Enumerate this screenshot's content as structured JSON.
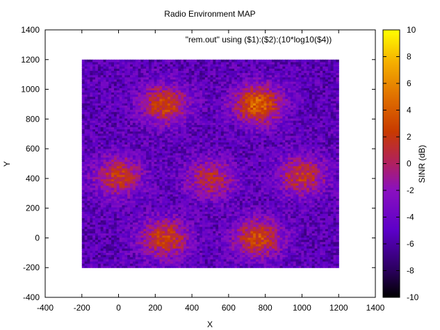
{
  "chart_data": {
    "type": "heatmap",
    "title": "Radio Environment MAP",
    "series_label": "\"rem.out\" using ($1):($2):(10*log10($4))",
    "xlabel": "X",
    "ylabel": "Y",
    "colorbar_label": "SINR (dB)",
    "xlim": [
      -400,
      1400
    ],
    "ylim": [
      -400,
      1400
    ],
    "x_ticks": [
      "-400",
      "-200",
      "0",
      "200",
      "400",
      "600",
      "800",
      "1000",
      "1200",
      "1400"
    ],
    "y_ticks": [
      "-400",
      "-200",
      "0",
      "200",
      "400",
      "600",
      "800",
      "1000",
      "1200",
      "1400"
    ],
    "data_extent": {
      "x": [
        -200,
        1200
      ],
      "y": [
        -200,
        1200
      ]
    },
    "cbrange": [
      -10,
      10
    ],
    "colorbar_ticks": [
      "-10",
      "-8",
      "-6",
      "-4",
      "-2",
      "0",
      "2",
      "4",
      "6",
      "8",
      "10"
    ],
    "palette": "gnuplot (black-purple-red-orange-yellow)",
    "hotspots": [
      {
        "x": 250,
        "y": 900,
        "sinr_peak": 4
      },
      {
        "x": 760,
        "y": 900,
        "sinr_peak": 6
      },
      {
        "x": 0,
        "y": 420,
        "sinr_peak": 3
      },
      {
        "x": 500,
        "y": 400,
        "sinr_peak": 2
      },
      {
        "x": 1000,
        "y": 420,
        "sinr_peak": 3
      },
      {
        "x": 250,
        "y": 0,
        "sinr_peak": 4
      },
      {
        "x": 760,
        "y": 0,
        "sinr_peak": 4
      }
    ],
    "background_sinr": -5
  }
}
